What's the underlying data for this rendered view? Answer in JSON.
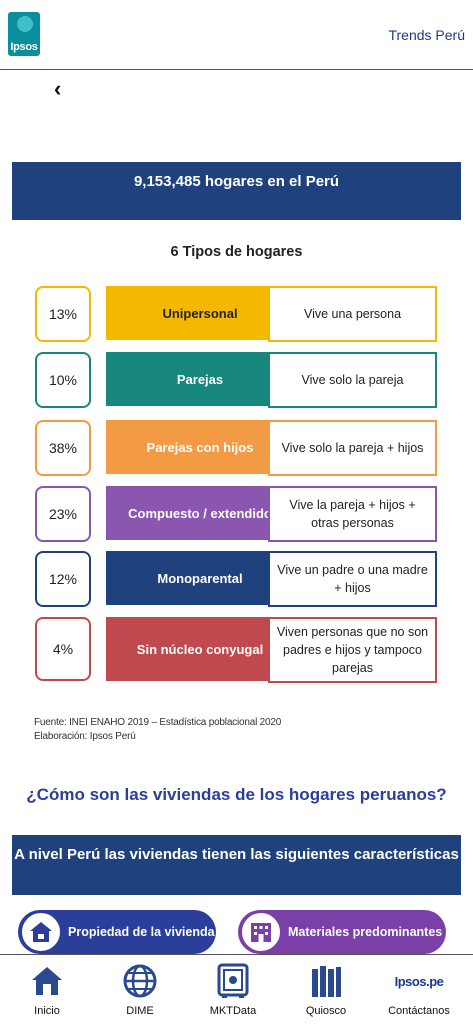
{
  "header": {
    "logo_text": "Ipsos",
    "title": "Trends Perú"
  },
  "nav_back": "‹",
  "banner": "9,153,485 hogares en el Perú",
  "subtitle": "6 Tipos de hogares",
  "types": [
    {
      "pct": "13%",
      "label": "Unipersonal",
      "desc": "Vive una persona",
      "color": "#f5b800",
      "label_text_color": "#222222"
    },
    {
      "pct": "10%",
      "label": "Parejas",
      "desc": "Vive solo la pareja",
      "color": "#17867c",
      "label_text_color": "#ffffff"
    },
    {
      "pct": "38%",
      "label": "Parejas con hijos",
      "desc": "Vive solo la pareja + hijos",
      "color": "#f39a45",
      "label_text_color": "#ffffff"
    },
    {
      "pct": "23%",
      "label": "Compuesto / extendido",
      "desc": "Vive la pareja + hijos + otras personas",
      "color": "#8a56b0",
      "label_text_color": "#ffffff"
    },
    {
      "pct": "12%",
      "label": "Monoparental",
      "desc": "Vive un padre o una madre + hijos",
      "color": "#1f427f",
      "label_text_color": "#ffffff"
    },
    {
      "pct": "4%",
      "label": "Sin núcleo conyugal",
      "desc": "Viven personas que no son padres e hijos y tampoco parejas",
      "color": "#c0484f",
      "label_text_color": "#ffffff"
    }
  ],
  "source": {
    "line1": "Fuente:  INEI  ENAHO 2019 – Estadística poblacional 2020",
    "line2": "Elaboración: Ipsos Perú"
  },
  "question": "¿Cómo son las viviendas de los hogares peruanos?",
  "banner2": "A nivel Perú las viviendas tienen las siguientes características",
  "pills": [
    {
      "label": "Propiedad de la vivienda",
      "icon": "house-icon"
    },
    {
      "label": "Materiales predominantes",
      "icon": "building-icon"
    }
  ],
  "bottom_nav": [
    {
      "label": "Inicio",
      "icon": "home-icon"
    },
    {
      "label": "DIME",
      "icon": "globe-icon"
    },
    {
      "label": "MKTData",
      "icon": "safe-icon"
    },
    {
      "label": "Quiosco",
      "icon": "books-icon"
    },
    {
      "label": "Contáctanos",
      "icon_text": "Ipsos.pe"
    }
  ],
  "colors": {
    "navy": "#1f427f",
    "brand_blue": "#1b3a8a",
    "purple": "#7b3fa8"
  }
}
